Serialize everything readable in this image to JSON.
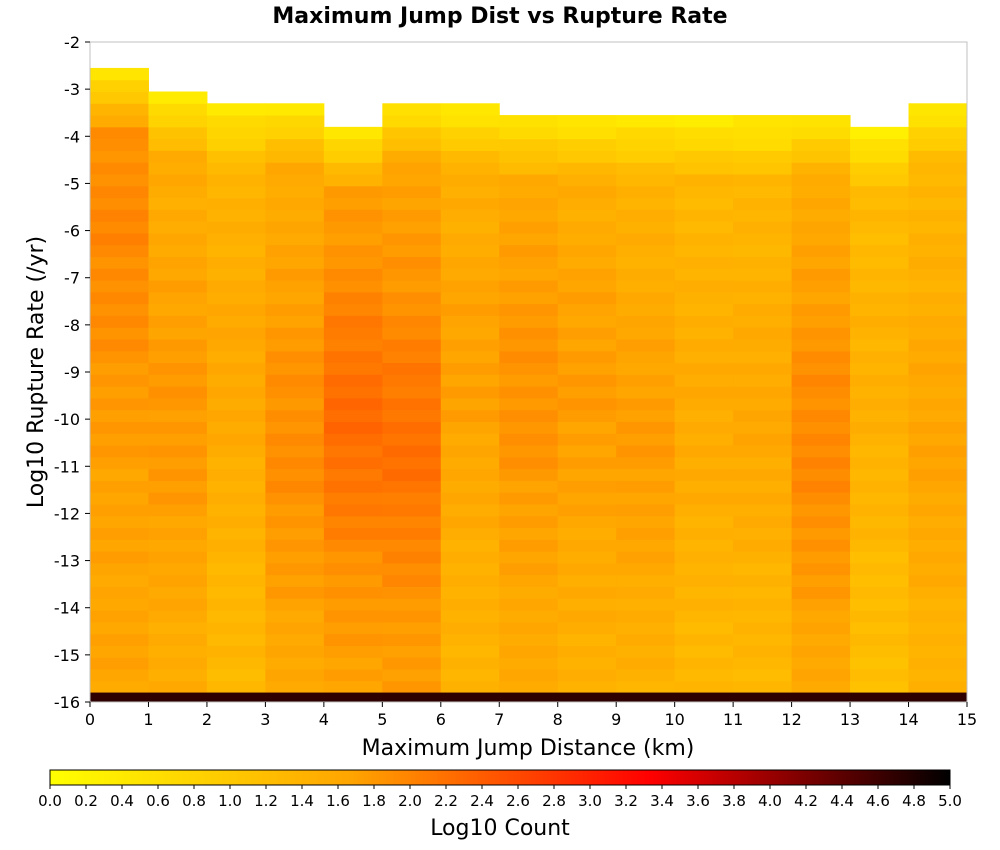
{
  "chart_data": {
    "type": "heatmap",
    "title": "Maximum Jump Dist vs Rupture Rate",
    "xlabel": "Maximum Jump Distance (km)",
    "ylabel": "Log10 Rupture Rate (/yr)",
    "xlim": [
      0,
      15
    ],
    "ylim": [
      -16,
      -2
    ],
    "x_ticks": [
      0,
      1,
      2,
      3,
      4,
      5,
      6,
      7,
      8,
      9,
      10,
      11,
      12,
      13,
      14,
      15
    ],
    "y_ticks": [
      -2,
      -3,
      -4,
      -5,
      -6,
      -7,
      -8,
      -9,
      -10,
      -11,
      -12,
      -13,
      -14,
      -15,
      -16
    ],
    "x_bins": [
      0.5,
      1.5,
      2.5,
      3.5,
      4.5,
      5.5,
      6.5,
      7.5,
      8.5,
      9.5,
      10.5,
      11.5,
      12.5,
      13.5,
      14.5
    ],
    "y_bin_width": 0.25,
    "y_bin_edges_start": -16,
    "colorbar": {
      "label": "Log10 Count",
      "range": [
        0,
        5
      ],
      "ticks": [
        "0.0",
        "0.2",
        "0.4",
        "0.6",
        "0.8",
        "1.0",
        "1.2",
        "1.4",
        "1.6",
        "1.8",
        "2.0",
        "2.2",
        "2.4",
        "2.6",
        "2.8",
        "3.0",
        "3.2",
        "3.4",
        "3.6",
        "3.8",
        "4.0",
        "4.2",
        "4.4",
        "4.6",
        "4.8",
        "5.0"
      ],
      "stops": [
        "#ffff00",
        "#ffa500",
        "#ff0000",
        "#000000"
      ]
    },
    "columns": [
      {
        "x": 0.5,
        "top": -2.75,
        "base": 1.65,
        "peak": 1.95,
        "peak_at": -6.0,
        "spread": 4.0
      },
      {
        "x": 1.5,
        "top": -3.25,
        "base": 1.5,
        "peak": 1.8,
        "peak_at": -10.0,
        "spread": 3.5
      },
      {
        "x": 2.5,
        "top": -3.5,
        "base": 1.3,
        "peak": 1.6,
        "peak_at": -9.0,
        "spread": 3.5
      },
      {
        "x": 3.5,
        "top": -3.5,
        "base": 1.55,
        "peak": 1.9,
        "peak_at": -10.5,
        "spread": 3.5
      },
      {
        "x": 4.5,
        "top": -4.0,
        "base": 1.7,
        "peak": 2.25,
        "peak_at": -10.0,
        "spread": 3.0
      },
      {
        "x": 5.5,
        "top": -3.5,
        "base": 1.7,
        "peak": 2.2,
        "peak_at": -10.5,
        "spread": 3.0
      },
      {
        "x": 6.5,
        "top": -3.5,
        "base": 1.4,
        "peak": 1.7,
        "peak_at": -9.0,
        "spread": 3.5
      },
      {
        "x": 7.5,
        "top": -3.75,
        "base": 1.55,
        "peak": 1.85,
        "peak_at": -9.5,
        "spread": 3.5
      },
      {
        "x": 8.5,
        "top": -3.75,
        "base": 1.45,
        "peak": 1.75,
        "peak_at": -9.5,
        "spread": 3.5
      },
      {
        "x": 9.5,
        "top": -3.75,
        "base": 1.4,
        "peak": 1.75,
        "peak_at": -10.5,
        "spread": 3.5
      },
      {
        "x": 10.5,
        "top": -3.75,
        "base": 1.3,
        "peak": 1.55,
        "peak_at": -10.0,
        "spread": 3.5
      },
      {
        "x": 11.5,
        "top": -3.75,
        "base": 1.3,
        "peak": 1.6,
        "peak_at": -10.0,
        "spread": 3.5
      },
      {
        "x": 12.5,
        "top": -3.75,
        "base": 1.55,
        "peak": 1.95,
        "peak_at": -10.5,
        "spread": 3.5
      },
      {
        "x": 13.5,
        "top": -4.0,
        "base": 1.2,
        "peak": 1.45,
        "peak_at": -9.5,
        "spread": 3.5
      },
      {
        "x": 14.5,
        "top": -3.5,
        "base": 1.35,
        "peak": 1.65,
        "peak_at": -10.5,
        "spread": 3.5
      }
    ],
    "bottom_row": {
      "y_range": [
        -16,
        -15.8
      ],
      "value": 4.7
    }
  }
}
